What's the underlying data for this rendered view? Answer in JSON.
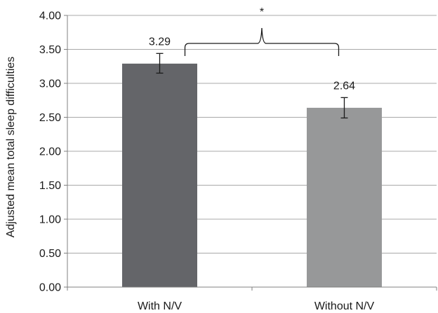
{
  "chart_data": {
    "type": "bar",
    "title": "",
    "xlabel": "",
    "ylabel": "Adjusted mean total sleep difficulties",
    "categories": [
      "With N/V",
      "Without N/V"
    ],
    "values": [
      3.29,
      2.64
    ],
    "data_labels": [
      "3.29",
      "2.64"
    ],
    "error_bars": [
      {
        "low": 3.15,
        "high": 3.44
      },
      {
        "low": 2.49,
        "high": 2.79
      }
    ],
    "bar_colors": [
      "#646569",
      "#979899"
    ],
    "ylim": [
      0,
      4
    ],
    "yticks": [
      0,
      0.5,
      1,
      1.5,
      2,
      2.5,
      3,
      3.5,
      4
    ],
    "ytick_labels": [
      "0.00",
      "0.50",
      "1.00",
      "1.50",
      "2.00",
      "2.50",
      "3.00",
      "3.50",
      "4.00"
    ],
    "grid": true,
    "legend": "none",
    "annotation": {
      "text": "*",
      "between": [
        "With N/V",
        "Without N/V"
      ]
    }
  }
}
